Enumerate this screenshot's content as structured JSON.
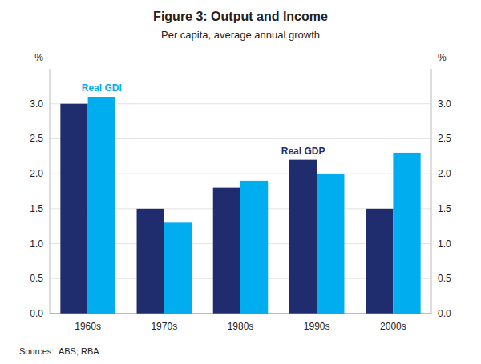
{
  "chart_data": {
    "type": "bar",
    "title": "Figure 3: Output and Income",
    "subtitle": "Per capita, average annual growth",
    "source": "Sources:  ABS; RBA",
    "ylabel": "%",
    "categories": [
      "1960s",
      "1970s",
      "1980s",
      "1990s",
      "2000s"
    ],
    "series": [
      {
        "name": "Real GDP",
        "color": "#1f2d6e",
        "values": [
          3.0,
          1.5,
          1.8,
          2.2,
          1.5
        ]
      },
      {
        "name": "Real GDI",
        "color": "#00aeef",
        "values": [
          3.1,
          1.3,
          1.9,
          2.0,
          2.3
        ]
      }
    ],
    "ylim": [
      0.0,
      3.5
    ],
    "yticks": [
      {
        "value": 0.0,
        "label": "0.0"
      },
      0.5,
      {
        "value": 1.0,
        "label": "1.0"
      },
      1.5,
      {
        "value": 2.0,
        "label": "2.0"
      },
      2.5,
      {
        "value": 3.0,
        "label": "3.0"
      }
    ],
    "grid": true
  }
}
